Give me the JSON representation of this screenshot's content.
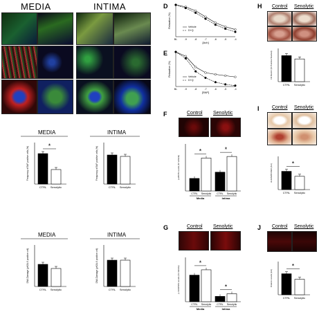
{
  "headers": {
    "media": "MEDIA",
    "intima": "INTIMA"
  },
  "panel_letters": {
    "d": "D",
    "e": "E",
    "f": "F",
    "g": "G",
    "h": "H",
    "i": "I",
    "j": "J"
  },
  "group_labels": {
    "control": "Control",
    "senolytic": "Senolytic"
  },
  "x_cats": {
    "ctrl": "CTRL",
    "senolytic": "Senolytic"
  },
  "section_titles": {
    "media": "MEDIA",
    "intima": "INTIMA"
  },
  "region_labels": {
    "media": "Media",
    "intima": "Intima"
  },
  "star": "*",
  "chart_data": [
    {
      "type": "bar",
      "id": "a_media",
      "title": "MEDIA",
      "ylabel": "Frequency of EdF positive cells (%)",
      "categories": [
        "CTRL",
        "Senolytic"
      ],
      "values": [
        44,
        21
      ],
      "ylim": [
        0,
        60
      ]
    },
    {
      "type": "bar",
      "id": "a_intima",
      "title": "INTIMA",
      "ylabel": "Frequency of EdF positive cells (%)",
      "categories": [
        "CTRL",
        "Senolytic"
      ],
      "values": [
        42,
        40
      ],
      "ylim": [
        0,
        60
      ]
    },
    {
      "type": "bar",
      "id": "b_media",
      "title": "MEDIA",
      "ylabel": "DNA Damage (γH2A.X positive cell)",
      "categories": [
        "CTRL",
        "Senolytic"
      ],
      "values": [
        8,
        6.5
      ],
      "ylim": [
        0,
        15
      ]
    },
    {
      "type": "bar",
      "id": "b_intima",
      "title": "INTIMA",
      "ylabel": "DNA Damage (γH2A.X positive cell)",
      "categories": [
        "CTRL",
        "Senolytic"
      ],
      "values": [
        9.5,
        9.5
      ],
      "ylim": [
        0,
        15
      ]
    },
    {
      "type": "line",
      "id": "d",
      "ylabel": "Relaxation (%)",
      "xlabel": "[Ach]",
      "x_ticks": [
        "BL",
        "-9",
        "-8",
        "-7",
        "-6",
        "-5",
        "-4"
      ],
      "series": [
        {
          "name": "Vehicle",
          "values": [
            0,
            -5,
            -15,
            -30,
            -45,
            -55,
            -62
          ]
        },
        {
          "name": "D+Q",
          "values": [
            0,
            -8,
            -20,
            -35,
            -50,
            -60,
            -68
          ]
        }
      ]
    },
    {
      "type": "line",
      "id": "e",
      "ylabel": "Relaxation (%)",
      "xlabel": "[SNP]",
      "x_ticks": [
        "BL",
        "-9",
        "-8",
        "-7",
        "-6",
        "-5",
        "-4"
      ],
      "series": [
        {
          "name": "Vehicle",
          "values": [
            0,
            -10,
            -35,
            -48,
            -52,
            -55,
            -58
          ]
        },
        {
          "name": "D+Q",
          "values": [
            0,
            -15,
            -45,
            -60,
            -70,
            -75,
            -78
          ]
        }
      ]
    },
    {
      "type": "bar",
      "id": "f",
      "ylabel": "p-eNOS Levels (% Vehicle)",
      "groups": [
        "Media",
        "Intima"
      ],
      "categories": [
        "CTRL",
        "Senolytic"
      ],
      "values": [
        [
          8,
          21
        ],
        [
          12,
          22
        ]
      ],
      "ylim": [
        0,
        30
      ]
    },
    {
      "type": "bar",
      "id": "g",
      "ylabel": "p-VASP/OS Levels (% Vehicle)",
      "groups": [
        "Media",
        "Intima"
      ],
      "categories": [
        "CTRL",
        "Senolytic"
      ],
      "values": [
        [
          30,
          36
        ],
        [
          6,
          9
        ]
      ],
      "ylim": [
        0,
        50
      ]
    },
    {
      "type": "bar",
      "id": "h",
      "ylabel": "Oil Red-O (% Positive Stained)",
      "categories": [
        "CTRL",
        "Senolytic"
      ],
      "values": [
        47,
        41
      ],
      "ylim": [
        0,
        60
      ]
    },
    {
      "type": "bar",
      "id": "i",
      "ylabel": "ALIZARIN RED (AU)",
      "categories": [
        "CTRL",
        "Senolytic"
      ],
      "values": [
        5.5,
        4.0
      ],
      "ylim": [
        0,
        10
      ]
    },
    {
      "type": "bar",
      "id": "j",
      "ylabel": "Osteris Levels (AU)",
      "categories": [
        "CTRL",
        "Senolytic"
      ],
      "values": [
        9.5,
        7
      ],
      "ylim": [
        0,
        15
      ]
    }
  ]
}
